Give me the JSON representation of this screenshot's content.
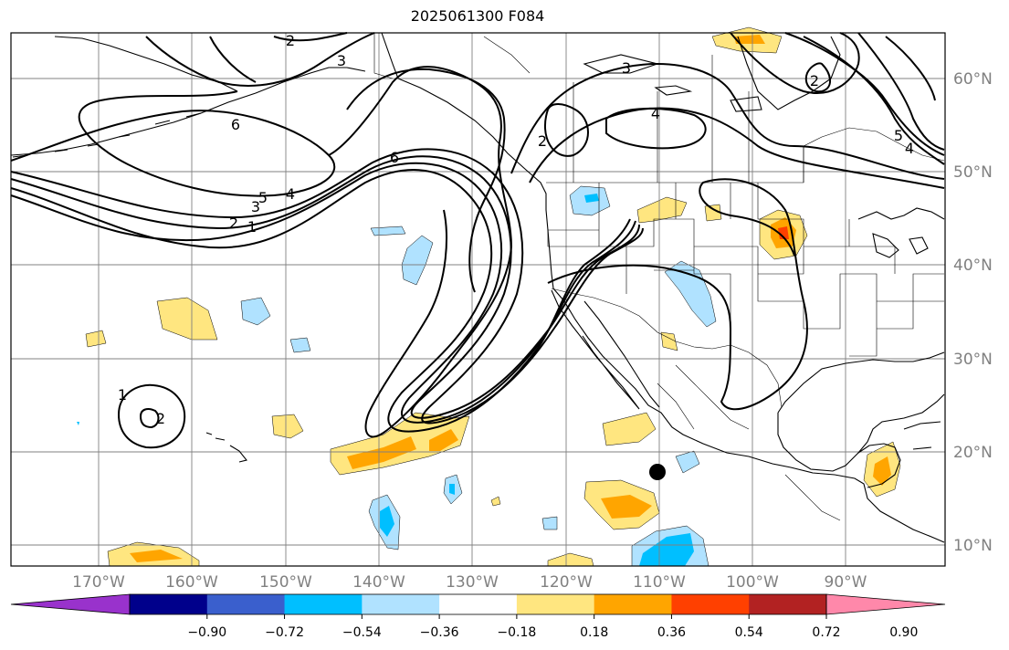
{
  "title": "2025061300 F084",
  "map": {
    "lon_labels": [
      "170°W",
      "160°W",
      "150°W",
      "140°W",
      "130°W",
      "120°W",
      "110°W",
      "100°W",
      "90°W"
    ],
    "lat_labels": [
      "60°N",
      "50°N",
      "40°N",
      "30°N",
      "20°N",
      "10°N"
    ]
  },
  "contour_labels": [
    "2",
    "3",
    "6",
    "5",
    "4",
    "1",
    "2",
    "3",
    "2",
    "3",
    "4",
    "6",
    "5",
    "4",
    "2",
    "1",
    "2"
  ],
  "colorbar": {
    "ticks": [
      "−0.90",
      "−0.72",
      "−0.54",
      "−0.36",
      "−0.18",
      "0.18",
      "0.36",
      "0.54",
      "0.72",
      "0.90"
    ],
    "colors": [
      "#9932cc",
      "#00008b",
      "#3a5fcd",
      "#00bfff",
      "#b0e2ff",
      "#ffffff",
      "#ffe680",
      "#ffa500",
      "#ff4000",
      "#b22222",
      "#ff88aa"
    ]
  },
  "shading_colors": {
    "light_blue": "#b0e2ff",
    "blue": "#00bfff",
    "light_yellow": "#ffe680",
    "orange": "#ffa500",
    "red_orange": "#ff4000"
  }
}
